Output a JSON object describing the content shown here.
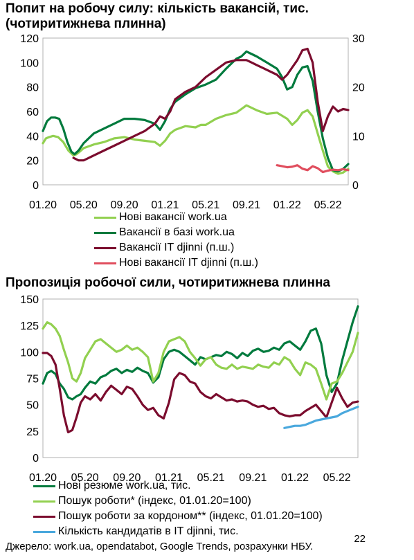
{
  "chart_data": [
    {
      "type": "line",
      "title": "Попит на робочу силу: кількість вакансій, тис. (чотиритижнева плинна)",
      "x_ticks": [
        "01.20",
        "05.20",
        "09.20",
        "01.21",
        "05.21",
        "09.21",
        "01.22",
        "05.22"
      ],
      "y_left_ticks": [
        "0",
        "20",
        "40",
        "60",
        "80",
        "100",
        "120"
      ],
      "y_right_ticks": [
        "0",
        "10",
        "20",
        "30"
      ],
      "ylim_left": [
        0,
        120
      ],
      "ylim_right": [
        0,
        30
      ],
      "x_index_range": [
        0,
        30
      ],
      "series": [
        {
          "name": "Нові вакансії work.ua",
          "color": "#92d050",
          "axis": "left",
          "x": [
            0,
            0.3,
            0.6,
            1,
            1.5,
            2,
            2.5,
            3,
            3.3,
            3.6,
            4,
            5,
            6,
            7,
            8,
            9,
            10,
            11,
            11.5,
            12,
            12.5,
            13,
            14,
            15,
            15.5,
            16,
            17,
            18,
            19,
            19.5,
            20,
            21,
            22,
            23,
            24,
            24.5,
            25,
            25.5,
            26,
            26.5,
            27,
            27.5,
            28,
            28.5,
            29,
            29.5,
            30
          ],
          "values": [
            34,
            38,
            39,
            40,
            39,
            35,
            28,
            24,
            25,
            27,
            30,
            33,
            35,
            38,
            39,
            37,
            36,
            35,
            32,
            36,
            42,
            45,
            48,
            47,
            49,
            49,
            54,
            57,
            59,
            62,
            65,
            61,
            58,
            59,
            54,
            49,
            53,
            59,
            61,
            56,
            42,
            28,
            15,
            11,
            9,
            10,
            13
          ]
        },
        {
          "name": "Вакансії в базі work.ua",
          "color": "#007a3d",
          "axis": "left",
          "x": [
            0,
            0.4,
            0.8,
            1.2,
            1.6,
            2,
            2.4,
            2.8,
            3.1,
            3.5,
            4,
            5,
            6,
            7,
            8,
            9,
            10,
            11,
            11.5,
            12,
            12.5,
            13,
            14,
            15,
            16,
            17,
            18,
            18.5,
            19,
            19.5,
            20,
            20.5,
            21,
            22,
            23,
            23.5,
            24,
            24.5,
            25,
            25.5,
            26,
            26.5,
            27,
            27.5,
            28,
            28.5,
            29,
            29.5,
            30
          ],
          "values": [
            44,
            52,
            55,
            55,
            54,
            46,
            35,
            27,
            25,
            28,
            34,
            42,
            46,
            50,
            54,
            54,
            53,
            50,
            45,
            52,
            62,
            68,
            74,
            79,
            82,
            86,
            95,
            99,
            103,
            105,
            109,
            107,
            105,
            100,
            95,
            88,
            78,
            80,
            90,
            96,
            97,
            85,
            60,
            38,
            22,
            12,
            11,
            13,
            17
          ]
        },
        {
          "name": "Вакансії IT djinni (п.ш.)",
          "color": "#7b0c2e",
          "axis": "right",
          "x": [
            3,
            3.5,
            4,
            5,
            6,
            7,
            8,
            9,
            10,
            11,
            11.5,
            12,
            12.5,
            13,
            14,
            15,
            16,
            17,
            18,
            19,
            20,
            20.5,
            21,
            22,
            23,
            23.5,
            24,
            24.5,
            25,
            25.5,
            26,
            26.5,
            27,
            27.5,
            28,
            28.5,
            29,
            29.5,
            30
          ],
          "values": [
            5.5,
            5,
            5,
            6,
            7,
            8,
            9,
            10,
            11,
            12.5,
            14,
            13.5,
            15,
            17.5,
            19,
            20,
            22,
            23.5,
            25,
            25.5,
            25.5,
            25,
            24.5,
            23.5,
            22.5,
            21.5,
            22.5,
            24,
            25.5,
            27.5,
            27.8,
            25,
            17,
            11,
            14,
            16,
            15,
            15.5,
            15.3
          ]
        },
        {
          "name": "Нові вакансії IT djinni (п.ш.)",
          "color": "#e04e5e",
          "axis": "right",
          "x": [
            23,
            23.5,
            24,
            24.5,
            25,
            25.5,
            26,
            26.5,
            27,
            27.5,
            28,
            28.5,
            29,
            29.5,
            30
          ],
          "values": [
            4,
            3.8,
            3.6,
            3.7,
            4,
            3.3,
            3.0,
            3.8,
            3.4,
            2.6,
            2.9,
            3.1,
            3.0,
            3.2,
            3.0
          ]
        }
      ]
    },
    {
      "type": "line",
      "title": "Пропозиція робочої сили, чотиритижнева плинна",
      "x_ticks": [
        "01.20",
        "05.20",
        "09.20",
        "01.21",
        "05.21",
        "09.21",
        "01.22",
        "05.22"
      ],
      "y_ticks": [
        "0",
        "25",
        "50",
        "75",
        "100",
        "125",
        "150"
      ],
      "ylim": [
        0,
        150
      ],
      "x_index_range": [
        0,
        30
      ],
      "series": [
        {
          "name": "Нові резюме work.ua, тис.",
          "color": "#007a3d",
          "x": [
            0,
            0.4,
            0.8,
            1.2,
            1.6,
            2,
            2.4,
            2.8,
            3.2,
            3.6,
            4,
            4.5,
            5,
            5.5,
            6,
            6.5,
            7,
            7.5,
            8,
            8.5,
            9,
            9.5,
            10,
            10.5,
            11,
            11.5,
            12,
            12.5,
            13,
            13.5,
            14,
            14.5,
            15,
            15.5,
            16,
            16.5,
            17,
            17.5,
            18,
            18.5,
            19,
            19.5,
            20,
            20.5,
            21,
            21.5,
            22,
            22.5,
            23,
            23.5,
            24,
            24.5,
            25,
            25.5,
            26,
            26.5,
            27,
            27.5,
            28,
            28.5,
            29,
            29.5,
            30
          ],
          "values": [
            70,
            80,
            82,
            79,
            70,
            65,
            57,
            55,
            58,
            60,
            66,
            72,
            70,
            76,
            78,
            82,
            84,
            80,
            83,
            81,
            85,
            82,
            80,
            71,
            76,
            93,
            100,
            102,
            100,
            96,
            92,
            88,
            95,
            93,
            95,
            97,
            96,
            100,
            98,
            94,
            99,
            96,
            101,
            103,
            100,
            101,
            104,
            102,
            108,
            110,
            106,
            102,
            110,
            120,
            122,
            108,
            78,
            62,
            70,
            92,
            110,
            128,
            143
          ]
        },
        {
          "name": "Пошук роботи* (індекс, 01.01.20=100)",
          "color": "#92d050",
          "x": [
            0,
            0.4,
            0.8,
            1.2,
            1.6,
            2,
            2.4,
            2.8,
            3.2,
            3.6,
            4,
            4.5,
            5,
            5.5,
            6,
            6.5,
            7,
            7.5,
            8,
            8.5,
            9,
            9.5,
            10,
            10.5,
            11,
            11.5,
            12,
            12.5,
            13,
            13.5,
            14,
            14.5,
            15,
            15.5,
            16,
            16.5,
            17,
            17.5,
            18,
            18.5,
            19,
            19.5,
            20,
            20.5,
            21,
            21.5,
            22,
            22.5,
            23,
            23.5,
            24,
            24.5,
            25,
            25.5,
            26,
            26.5,
            27,
            27.5,
            28,
            28.5,
            29,
            29.5,
            30
          ],
          "values": [
            122,
            128,
            126,
            122,
            115,
            102,
            90,
            75,
            72,
            80,
            94,
            102,
            110,
            112,
            108,
            104,
            100,
            102,
            106,
            102,
            104,
            100,
            95,
            72,
            80,
            100,
            110,
            112,
            114,
            110,
            100,
            94,
            87,
            93,
            95,
            88,
            85,
            84,
            88,
            84,
            86,
            85,
            84,
            88,
            86,
            85,
            90,
            88,
            95,
            92,
            84,
            78,
            90,
            88,
            84,
            70,
            55,
            70,
            72,
            80,
            90,
            100,
            118
          ]
        },
        {
          "name": "Пошук роботи за кордоном** (індекс, 01.01.20=100)",
          "color": "#7b0c2e",
          "x": [
            0,
            0.4,
            0.8,
            1.2,
            1.6,
            2,
            2.4,
            2.8,
            3.2,
            3.6,
            4,
            4.5,
            5,
            5.5,
            6,
            6.5,
            7,
            7.5,
            8,
            8.5,
            9,
            9.5,
            10,
            10.5,
            11,
            11.5,
            12,
            12.5,
            13,
            13.5,
            14,
            14.5,
            15,
            15.5,
            16,
            16.5,
            17,
            17.5,
            18,
            18.5,
            19,
            19.5,
            20,
            20.5,
            21,
            21.5,
            22,
            22.5,
            23,
            23.5,
            24,
            24.5,
            25,
            25.5,
            26,
            26.5,
            27,
            27.5,
            28,
            28.5,
            29,
            29.5,
            30
          ],
          "values": [
            99,
            99,
            96,
            88,
            65,
            40,
            24,
            26,
            38,
            52,
            58,
            55,
            60,
            54,
            62,
            68,
            64,
            60,
            67,
            65,
            58,
            50,
            45,
            47,
            40,
            37,
            52,
            74,
            80,
            78,
            72,
            70,
            62,
            58,
            56,
            60,
            57,
            54,
            55,
            53,
            54,
            53,
            50,
            48,
            49,
            46,
            47,
            42,
            40,
            39,
            40,
            40,
            44,
            47,
            50,
            44,
            38,
            52,
            66,
            56,
            48,
            52,
            53
          ]
        },
        {
          "name": "Кількість кандидатів в IT djinni, тис.",
          "color": "#4aa8dd",
          "x": [
            23,
            23.5,
            24,
            24.5,
            25,
            25.5,
            26,
            26.5,
            27,
            27.5,
            28,
            28.5,
            29,
            29.5,
            30
          ],
          "values": [
            28,
            29,
            30,
            30,
            31,
            33,
            35,
            36,
            37,
            38,
            39,
            42,
            44,
            46,
            48
          ]
        }
      ]
    }
  ],
  "source": "Джерело: work.ua, opendatabot, Google Trends, розрахунки НБУ.",
  "page_number": "22"
}
